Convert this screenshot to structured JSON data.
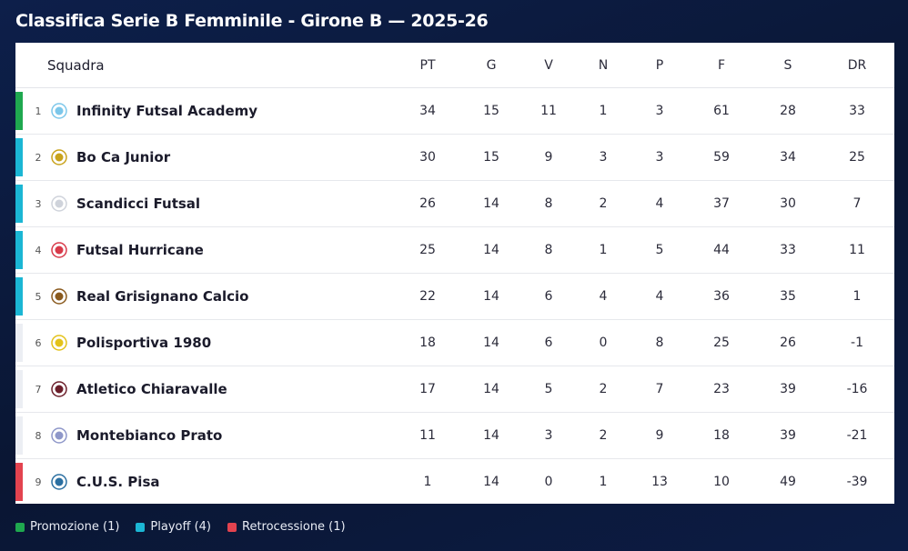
{
  "title": "Classifica Serie B Femminile - Girone B — 2025-26",
  "colors": {
    "promotion": "#1fa84f",
    "playoff": "#1bb6d4",
    "relegation": "#e3434f",
    "neutral": "#eceef3"
  },
  "columns": {
    "team": "Squadra",
    "pt": "PT",
    "g": "G",
    "v": "V",
    "n": "N",
    "p": "P",
    "f": "F",
    "s": "S",
    "dr": "DR"
  },
  "rows": [
    {
      "pos": "1",
      "team": "Infinity Futsal Academy",
      "pt": "34",
      "g": "15",
      "v": "11",
      "n": "1",
      "p": "3",
      "f": "61",
      "s": "28",
      "dr": "33",
      "zone": "promotion",
      "logo_icon": "infinity-logo-icon"
    },
    {
      "pos": "2",
      "team": "Bo Ca Junior",
      "pt": "30",
      "g": "15",
      "v": "9",
      "n": "3",
      "p": "3",
      "f": "59",
      "s": "34",
      "dr": "25",
      "zone": "playoff",
      "logo_icon": "shield-logo-icon"
    },
    {
      "pos": "3",
      "team": "Scandicci Futsal",
      "pt": "26",
      "g": "14",
      "v": "8",
      "n": "2",
      "p": "4",
      "f": "37",
      "s": "30",
      "dr": "7",
      "zone": "playoff",
      "logo_icon": "shield-logo-icon"
    },
    {
      "pos": "4",
      "team": "Futsal Hurricane",
      "pt": "25",
      "g": "14",
      "v": "8",
      "n": "1",
      "p": "5",
      "f": "44",
      "s": "33",
      "dr": "11",
      "zone": "playoff",
      "logo_icon": "round-logo-icon"
    },
    {
      "pos": "5",
      "team": "Real Grisignano Calcio",
      "pt": "22",
      "g": "14",
      "v": "6",
      "n": "4",
      "p": "4",
      "f": "36",
      "s": "35",
      "dr": "1",
      "zone": "playoff",
      "logo_icon": "crest-logo-icon"
    },
    {
      "pos": "6",
      "team": "Polisportiva 1980",
      "pt": "18",
      "g": "14",
      "v": "6",
      "n": "0",
      "p": "8",
      "f": "25",
      "s": "26",
      "dr": "-1",
      "zone": "neutral",
      "logo_icon": "round-logo-icon"
    },
    {
      "pos": "7",
      "team": "Atletico Chiaravalle",
      "pt": "17",
      "g": "14",
      "v": "5",
      "n": "2",
      "p": "7",
      "f": "23",
      "s": "39",
      "dr": "-16",
      "zone": "neutral",
      "logo_icon": "shield-logo-icon"
    },
    {
      "pos": "8",
      "team": "Montebianco Prato",
      "pt": "11",
      "g": "14",
      "v": "3",
      "n": "2",
      "p": "9",
      "f": "18",
      "s": "39",
      "dr": "-21",
      "zone": "neutral",
      "logo_icon": "shield-logo-icon"
    },
    {
      "pos": "9",
      "team": "C.U.S. Pisa",
      "pt": "1",
      "g": "14",
      "v": "0",
      "n": "1",
      "p": "13",
      "f": "10",
      "s": "49",
      "dr": "-39",
      "zone": "relegation",
      "logo_icon": "round-logo-icon"
    }
  ],
  "legend": [
    {
      "label": "Promozione (1)",
      "zone": "promotion"
    },
    {
      "label": "Playoff (4)",
      "zone": "playoff"
    },
    {
      "label": "Retrocessione (1)",
      "zone": "relegation"
    }
  ]
}
